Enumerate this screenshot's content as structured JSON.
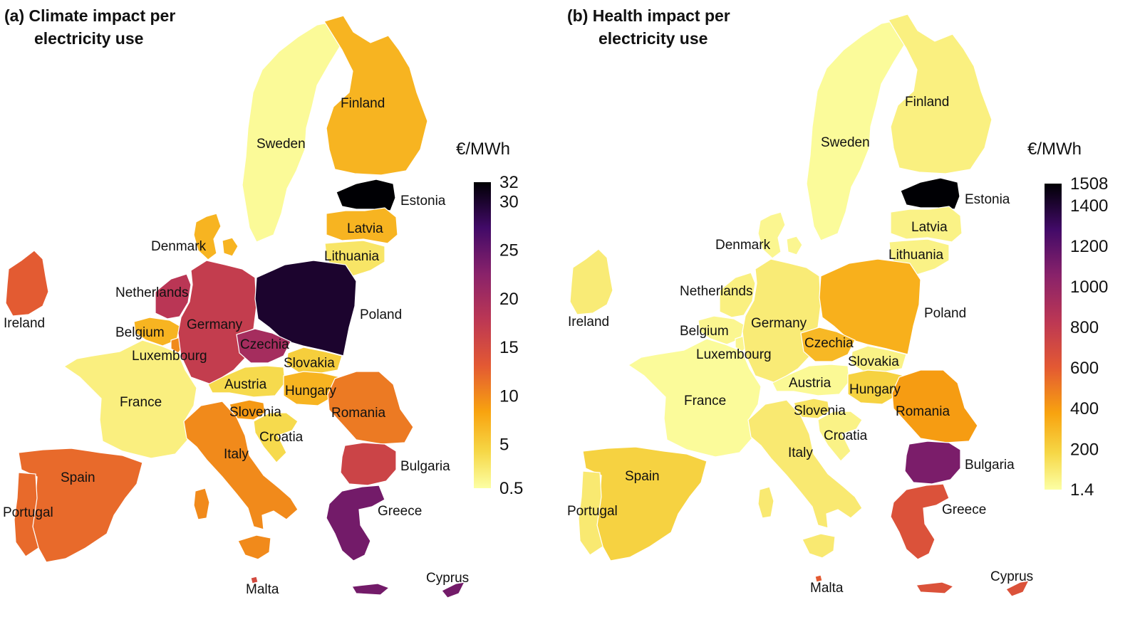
{
  "panel_a": {
    "title_line1": "(a) Climate impact per",
    "title_line2": "electricity use",
    "colorbar": {
      "unit": "€/MWh",
      "min": 0.5,
      "max": 32,
      "ticks": [
        "32",
        "30",
        "25",
        "20",
        "15",
        "10",
        "5",
        "0.5"
      ],
      "tick_values": [
        32,
        30,
        25,
        20,
        15,
        10,
        5,
        0.5
      ]
    },
    "countries": {
      "Sweden": 1,
      "Finland": 7,
      "Estonia": 32,
      "Latvia": 7,
      "Lithuania": 3,
      "Denmark": 7,
      "Ireland": 13,
      "Netherlands": 18,
      "Belgium": 7,
      "Luxembourg": 10,
      "Germany": 17,
      "Poland": 30,
      "Czechia": 20,
      "Slovakia": 5,
      "Austria": 4,
      "Hungary": 7,
      "Romania": 11,
      "France": 2,
      "Slovenia": 9,
      "Croatia": 4,
      "Italy": 10,
      "Bulgaria": 16,
      "Spain": 12,
      "Portugal": 12,
      "Greece": 24,
      "Malta": 15,
      "Cyprus": 24
    }
  },
  "panel_b": {
    "title_line1": "(b) Health impact per",
    "title_line2": "electricity use",
    "colorbar": {
      "unit": "€/MWh",
      "min": 1.4,
      "max": 1508,
      "ticks": [
        "1508",
        "1400",
        "1200",
        "1000",
        "800",
        "600",
        "400",
        "200",
        "1.4"
      ],
      "tick_values": [
        1508,
        1400,
        1200,
        1000,
        800,
        600,
        400,
        200,
        1.4
      ]
    },
    "countries": {
      "Sweden": 20,
      "Finland": 70,
      "Estonia": 1508,
      "Latvia": 60,
      "Lithuania": 60,
      "Denmark": 40,
      "Ireland": 90,
      "Netherlands": 70,
      "Belgium": 40,
      "Luxembourg": 40,
      "Germany": 90,
      "Poland": 330,
      "Czechia": 300,
      "Slovakia": 60,
      "Austria": 30,
      "Hungary": 200,
      "Romania": 400,
      "France": 20,
      "Slovenia": 130,
      "Croatia": 60,
      "Italy": 100,
      "Bulgaria": 1100,
      "Spain": 200,
      "Portugal": 100,
      "Greece": 650,
      "Malta": 600,
      "Cyprus": 650
    }
  },
  "country_names": [
    "Sweden",
    "Finland",
    "Estonia",
    "Latvia",
    "Lithuania",
    "Denmark",
    "Ireland",
    "Netherlands",
    "Belgium",
    "Luxembourg",
    "Germany",
    "Poland",
    "Czechia",
    "Slovakia",
    "Austria",
    "Hungary",
    "Romania",
    "France",
    "Slovenia",
    "Croatia",
    "Italy",
    "Bulgaria",
    "Spain",
    "Portugal",
    "Greece",
    "Malta",
    "Cyprus"
  ]
}
